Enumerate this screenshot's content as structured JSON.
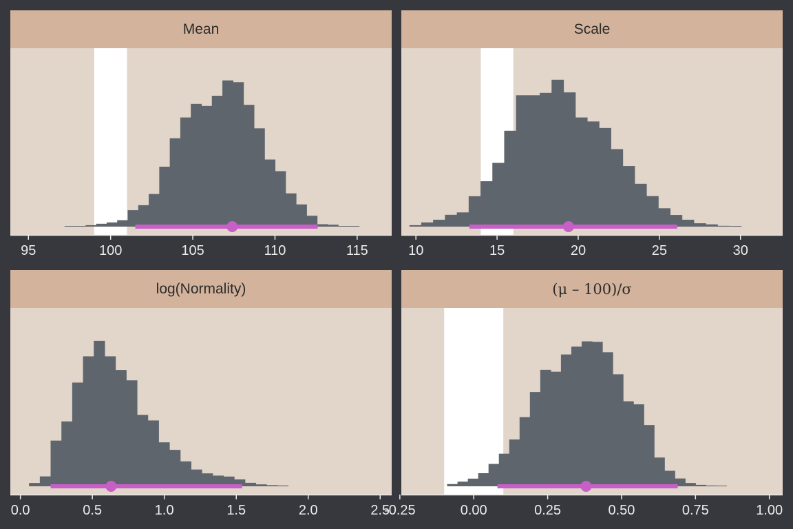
{
  "colors": {
    "background": "#36383d",
    "strip": "#d3b39c",
    "panel": "#e2d5ca",
    "bar": "#5f656d",
    "rope": "#ffffff",
    "interval": "#c75fc7"
  },
  "chart_data": [
    {
      "type": "bar",
      "title": "Mean",
      "xlim": [
        93.9,
        117.1
      ],
      "ylim": [
        0,
        1
      ],
      "tick_values": [
        95,
        100,
        105,
        110,
        115
      ],
      "tick_labels": [
        "95",
        "100",
        "105",
        "110",
        "115"
      ],
      "rope": [
        99,
        101
      ],
      "hist_start": 97.2,
      "hist_width": 0.64,
      "counts": [
        0.0,
        0.0,
        0.009,
        0.018,
        0.026,
        0.04,
        0.103,
        0.134,
        0.204,
        0.375,
        0.553,
        0.683,
        0.768,
        0.755,
        0.819,
        0.915,
        0.904,
        0.762,
        0.615,
        0.42,
        0.347,
        0.208,
        0.139,
        0.068,
        0.015,
        0.012,
        0.0,
        0.0
      ],
      "interval": [
        101.5,
        112.6
      ],
      "point": 107.4
    },
    {
      "type": "bar",
      "title": "Scale",
      "xlim": [
        9.1,
        32.6
      ],
      "ylim": [
        0,
        1
      ],
      "tick_values": [
        10,
        15,
        20,
        25,
        30
      ],
      "tick_labels": [
        "10",
        "15",
        "20",
        "25",
        "30"
      ],
      "rope": [
        14,
        16
      ],
      "hist_start": 9.6,
      "hist_width": 0.73,
      "counts": [
        0.009,
        0.026,
        0.043,
        0.074,
        0.089,
        0.19,
        0.284,
        0.399,
        0.6,
        0.822,
        0.822,
        0.837,
        0.919,
        0.84,
        0.683,
        0.658,
        0.617,
        0.485,
        0.379,
        0.268,
        0.191,
        0.115,
        0.073,
        0.043,
        0.021,
        0.014,
        0.005,
        0.0
      ],
      "interval": [
        13.3,
        26.1
      ],
      "point": 19.4
    },
    {
      "type": "bar",
      "title": "log(Normality)",
      "xlim": [
        -0.07,
        2.58
      ],
      "ylim": [
        0,
        1
      ],
      "tick_values": [
        0.0,
        0.5,
        1.0,
        1.5,
        2.0,
        2.5
      ],
      "tick_labels": [
        "0.0",
        "0.5",
        "1.0",
        "1.5",
        "2.0",
        "2.5"
      ],
      "rope": null,
      "hist_start": 0.06,
      "hist_width": 0.075,
      "counts": [
        0.021,
        0.062,
        0.286,
        0.406,
        0.649,
        0.813,
        0.91,
        0.813,
        0.728,
        0.663,
        0.447,
        0.412,
        0.275,
        0.228,
        0.156,
        0.105,
        0.081,
        0.067,
        0.061,
        0.043,
        0.022,
        0.012,
        0.007,
        0.005
      ],
      "interval": [
        0.21,
        1.54
      ],
      "point": 0.63
    },
    {
      "type": "bar",
      "title": "(μ – 100)/σ",
      "xlim": [
        -0.245,
        1.045
      ],
      "ylim": [
        0,
        1
      ],
      "tick_values": [
        -0.25,
        0.0,
        0.25,
        0.5,
        0.75,
        1.0
      ],
      "tick_labels": [
        "-0.25",
        "0.00",
        "0.25",
        "0.50",
        "0.75",
        "1.00"
      ],
      "rope": [
        -0.1,
        0.1
      ],
      "hist_start": -0.09,
      "hist_width": 0.035,
      "counts": [
        0.014,
        0.029,
        0.048,
        0.082,
        0.14,
        0.204,
        0.293,
        0.433,
        0.59,
        0.729,
        0.717,
        0.825,
        0.874,
        0.907,
        0.904,
        0.839,
        0.701,
        0.532,
        0.513,
        0.383,
        0.18,
        0.097,
        0.049,
        0.021,
        0.009,
        0.005,
        0.003
      ],
      "interval": [
        0.08,
        0.69
      ],
      "point": 0.38
    }
  ]
}
